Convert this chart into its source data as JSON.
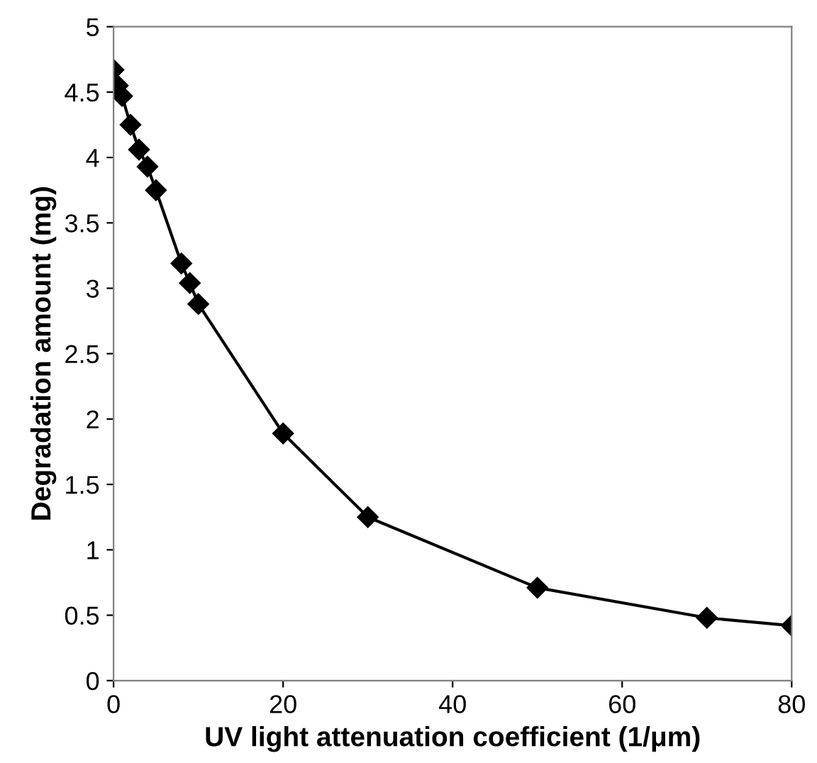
{
  "chart_data": {
    "type": "line",
    "xlabel": "UV light attenuation coefficient (1/μm)",
    "ylabel": "Degradation amount (mg)",
    "x": [
      0,
      0.5,
      1,
      2,
      3,
      4,
      5,
      8,
      9,
      10,
      20,
      30,
      50,
      70,
      80
    ],
    "series": [
      {
        "color": "#000000",
        "values": [
          4.67,
          4.55,
          4.47,
          4.25,
          4.06,
          3.93,
          3.75,
          3.19,
          3.04,
          2.88,
          1.89,
          1.25,
          0.71,
          0.48,
          0.42
        ]
      }
    ],
    "xlim": [
      0,
      80
    ],
    "xticks": [
      0,
      20,
      40,
      60,
      80
    ],
    "ylim": [
      0,
      5
    ],
    "yticks": [
      0,
      0.5,
      1,
      1.5,
      2,
      2.5,
      3,
      3.5,
      4,
      4.5,
      5
    ],
    "marker": "diamond",
    "line_style": "solid",
    "grid": false,
    "legend": false
  }
}
